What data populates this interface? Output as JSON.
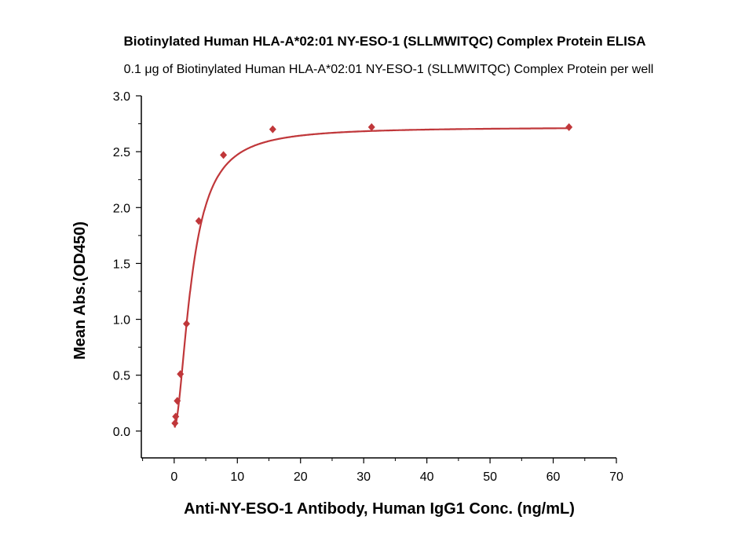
{
  "chart_data": {
    "type": "scatter",
    "title": "Biotinylated Human HLA-A*02:01 NY-ESO-1 (SLLMWITQC) Complex Protein ELISA",
    "subtitle": "0.1 μg of Biotinylated Human HLA-A*02:01 NY-ESO-1 (SLLMWITQC) Complex Protein per well",
    "xlabel": "Anti-NY-ESO-1 Antibody, Human IgG1 Conc. (ng/mL)",
    "ylabel": "Mean Abs.(OD450)",
    "xlim": [
      -5.2,
      70
    ],
    "ylim": [
      -0.24,
      3.0
    ],
    "xticks": [
      "0",
      "10",
      "20",
      "30",
      "40",
      "50",
      "60",
      "70"
    ],
    "yticks": [
      "0.0",
      "0.5",
      "1.0",
      "1.5",
      "2.0",
      "2.5",
      "3.0"
    ],
    "grid": false,
    "series": [
      {
        "name": "ELISA",
        "color": "#c0373a",
        "x": [
          0.12,
          0.24,
          0.49,
          0.98,
          1.95,
          3.9,
          7.8,
          15.6,
          31.25,
          62.5
        ],
        "y": [
          0.07,
          0.13,
          0.27,
          0.51,
          0.96,
          1.88,
          2.47,
          2.7,
          2.72,
          2.72
        ],
        "fit": {
          "model": "4PL",
          "bottom": 0.03,
          "top": 2.72,
          "ec50": 2.8,
          "hill": 1.8
        }
      }
    ]
  }
}
